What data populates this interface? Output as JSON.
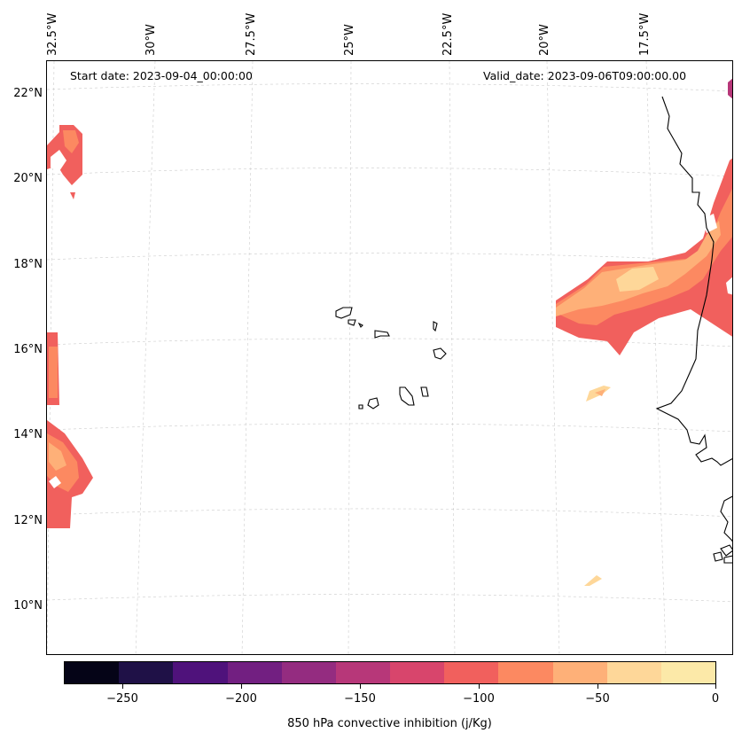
{
  "annotations": {
    "start_date": "Start date: 2023-09-04_00:00:00",
    "valid_date": "Valid_date: 2023-09-06T09:00:00.00"
  },
  "axes": {
    "lon_labels": [
      "32.5°W",
      "30°W",
      "27.5°W",
      "25°W",
      "22.5°W",
      "20°W",
      "17.5°W"
    ],
    "lat_labels": [
      "22°N",
      "20°N",
      "18°N",
      "16°N",
      "14°N",
      "12°N",
      "10°N"
    ]
  },
  "colorbar": {
    "title": "850 hPa convective inhibition (j/Kg)",
    "tick_labels": [
      "−250",
      "−200",
      "−150",
      "−100",
      "−50",
      "0"
    ],
    "colors": [
      "#050417",
      "#1f1147",
      "#4f127b",
      "#721f81",
      "#942c80",
      "#b73779",
      "#d8456c",
      "#f1605d",
      "#fc8961",
      "#feb078",
      "#fed799",
      "#fce9a8"
    ]
  },
  "map_colors": {
    "cat_m125": "#d8456c",
    "cat_m100": "#f1605d",
    "cat_m75": "#fc8961",
    "cat_m50": "#feb078",
    "cat_m25": "#fed799",
    "cat_magenta": "#b73779",
    "coast": "#000000",
    "grid": "#cccccc"
  }
}
